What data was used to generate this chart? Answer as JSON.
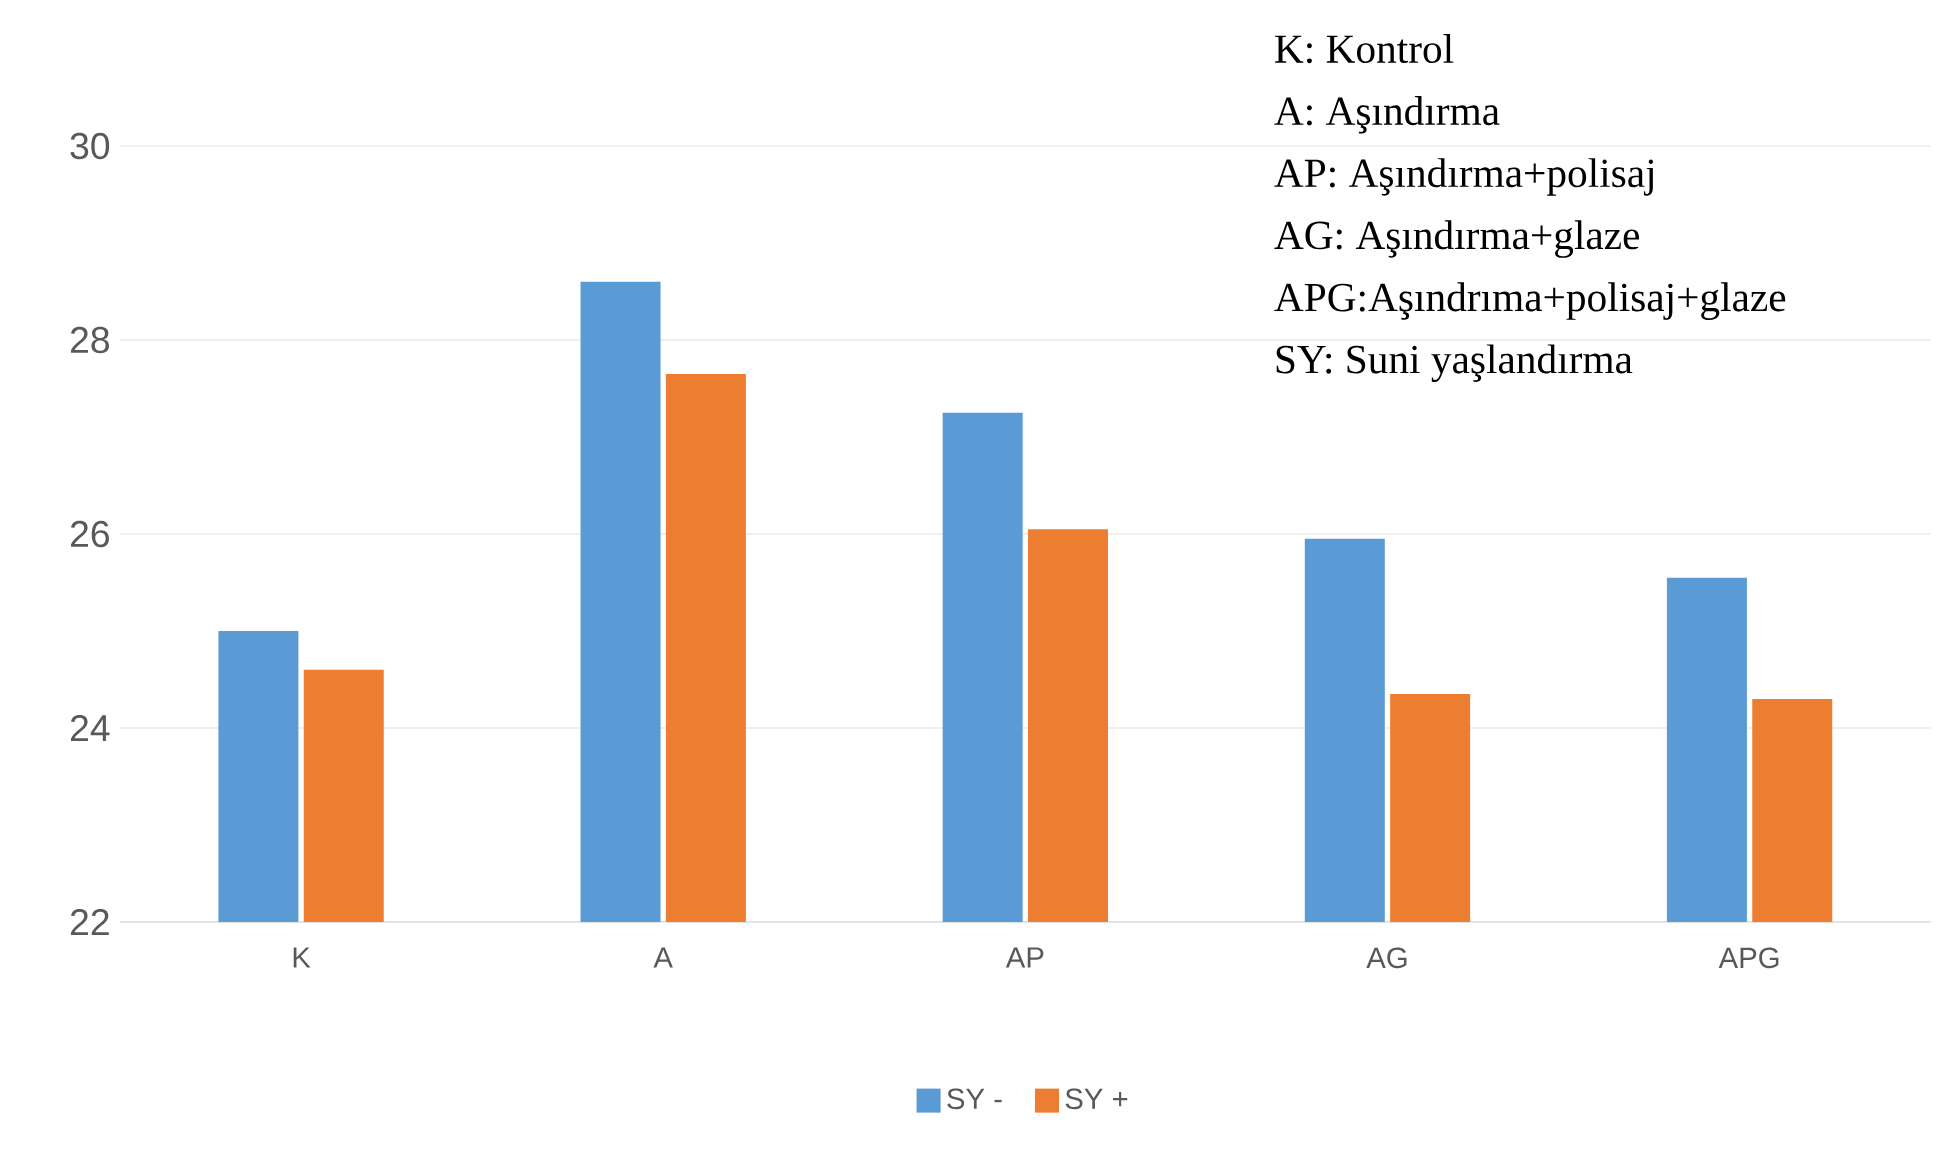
{
  "chart_data": {
    "type": "bar",
    "categories": [
      "K",
      "A",
      "AP",
      "AG",
      "APG"
    ],
    "series": [
      {
        "name": "SY -",
        "color": "#5b9bd5",
        "values": [
          25.0,
          28.6,
          27.25,
          25.95,
          25.55
        ]
      },
      {
        "name": "SY +",
        "color": "#ed7d31",
        "values": [
          24.6,
          27.65,
          26.05,
          24.35,
          24.3
        ]
      }
    ],
    "ylim": [
      22,
      30
    ],
    "yticks": [
      22,
      24,
      26,
      28,
      30
    ],
    "grid": "y",
    "legend": "bottom",
    "annotations": [
      "K: Kontrol",
      "A: Aşındırma",
      "AP: Aşındırma+polisaj",
      "AG: Aşındırma+glaze",
      "APG:Aşındrıma+polisaj+glaze",
      "SY: Suni yaşlandırma"
    ]
  }
}
